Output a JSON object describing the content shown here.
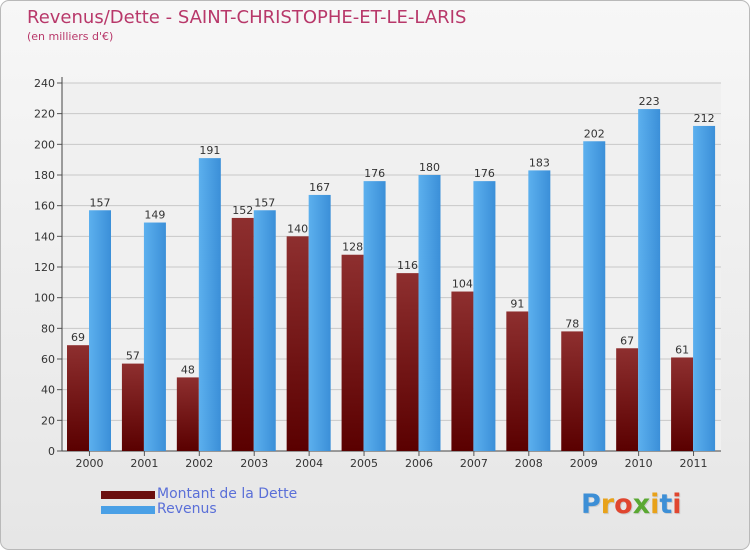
{
  "chart_data": {
    "type": "bar",
    "title": "Revenus/Dette - SAINT-CHRISTOPHE-ET-LE-LARIS",
    "subtitle": "(en milliers d'€)",
    "categories": [
      "2000",
      "2001",
      "2002",
      "2003",
      "2004",
      "2005",
      "2006",
      "2007",
      "2008",
      "2009",
      "2010",
      "2011"
    ],
    "series": [
      {
        "name": "Montant de la Dette",
        "values": [
          69,
          57,
          48,
          152,
          140,
          128,
          116,
          104,
          91,
          78,
          67,
          61
        ],
        "color": "#7a1515"
      },
      {
        "name": "Revenus",
        "values": [
          157,
          149,
          191,
          157,
          167,
          176,
          180,
          176,
          183,
          202,
          223,
          212
        ],
        "color": "#4aa0e6"
      }
    ],
    "ylim": [
      0,
      240
    ],
    "yticks": [
      0,
      20,
      40,
      60,
      80,
      100,
      120,
      140,
      160,
      180,
      200,
      220,
      240
    ],
    "grid": true,
    "legend": "bottom-left"
  },
  "logo": {
    "text": "Proxiti"
  }
}
